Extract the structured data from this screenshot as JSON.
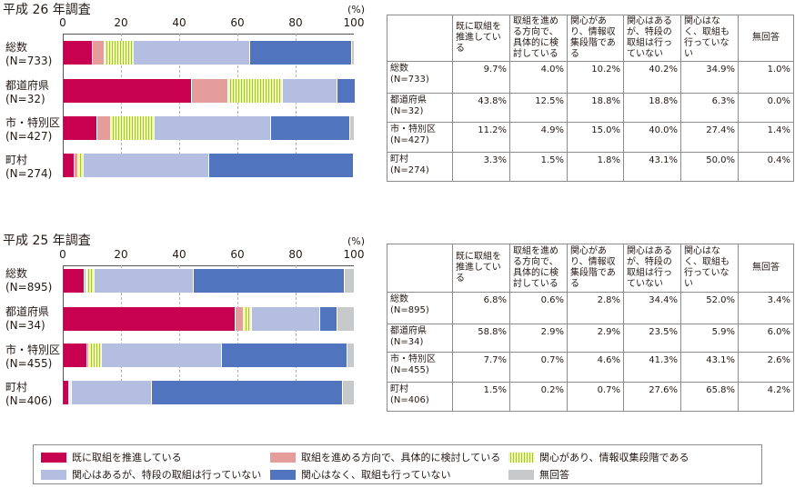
{
  "unit_label": "(%)",
  "ticks": [
    "0",
    "20",
    "40",
    "60",
    "80",
    "100"
  ],
  "table_headers": [
    "既に取組を推進している",
    "取組を進める方向で、具体的に検討している",
    "関心があり、情報収集段階である",
    "関心はあるが、特段の取組は行っていない",
    "関心はなく、取組も行っていない",
    "無回答"
  ],
  "series_colors": [
    "#c7004f",
    "#e59d9c",
    "#b5d45c",
    "#b3bee0",
    "#5074bd",
    "#c8c9ca"
  ],
  "legend": {
    "items": [
      {
        "label": "既に取組を推進している"
      },
      {
        "label": "取組を進める方向で、具体的に検討している"
      },
      {
        "label": "関心があり、情報収集段階である"
      },
      {
        "label": "関心はあるが、特段の取組は行っていない"
      },
      {
        "label": "関心はなく、取組も行っていない"
      },
      {
        "label": "無回答"
      }
    ]
  },
  "chart_data": [
    {
      "type": "bar",
      "stacked": true,
      "orientation": "horizontal",
      "title": "平成 26 年調査",
      "xlim": [
        0,
        100
      ],
      "categories": [
        {
          "name": "総数",
          "n": "(N=733)",
          "display": [
            "9.7%",
            "4.0%",
            "10.2%",
            "40.2%",
            "34.9%",
            "1.0%"
          ]
        },
        {
          "name": "都道府県",
          "n": "(N=32)",
          "display": [
            "43.8%",
            "12.5%",
            "18.8%",
            "18.8%",
            "6.3%",
            "0.0%"
          ]
        },
        {
          "name": "市・特別区",
          "n": "(N=427)",
          "display": [
            "11.2%",
            "4.9%",
            "15.0%",
            "40.0%",
            "27.4%",
            "1.4%"
          ]
        },
        {
          "name": "町村",
          "n": "(N=274)",
          "display": [
            "3.3%",
            "1.5%",
            "1.8%",
            "43.1%",
            "50.0%",
            "0.4%"
          ]
        }
      ],
      "series": [
        {
          "name": "既に取組を推進している",
          "values": [
            9.7,
            43.8,
            11.2,
            3.3
          ]
        },
        {
          "name": "取組を進める方向で、具体的に検討している",
          "values": [
            4.0,
            12.5,
            4.9,
            1.5
          ]
        },
        {
          "name": "関心があり、情報収集段階である",
          "values": [
            10.2,
            18.8,
            15.0,
            1.8
          ]
        },
        {
          "name": "関心はあるが、特段の取組は行っていない",
          "values": [
            40.2,
            18.8,
            40.0,
            43.1
          ]
        },
        {
          "name": "関心はなく、取組も行っていない",
          "values": [
            34.9,
            6.3,
            27.4,
            50.0
          ]
        },
        {
          "name": "無回答",
          "values": [
            1.0,
            0.0,
            1.4,
            0.4
          ]
        }
      ]
    },
    {
      "type": "bar",
      "stacked": true,
      "orientation": "horizontal",
      "title": "平成 25 年調査",
      "xlim": [
        0,
        100
      ],
      "categories": [
        {
          "name": "総数",
          "n": "(N=895)",
          "display": [
            "6.8%",
            "0.6%",
            "2.8%",
            "34.4%",
            "52.0%",
            "3.4%"
          ]
        },
        {
          "name": "都道府県",
          "n": "(N=34)",
          "display": [
            "58.8%",
            "2.9%",
            "2.9%",
            "23.5%",
            "5.9%",
            "6.0%"
          ]
        },
        {
          "name": "市・特別区",
          "n": "(N=455)",
          "display": [
            "7.7%",
            "0.7%",
            "4.6%",
            "41.3%",
            "43.1%",
            "2.6%"
          ]
        },
        {
          "name": "町村",
          "n": "(N=406)",
          "display": [
            "1.5%",
            "0.2%",
            "0.7%",
            "27.6%",
            "65.8%",
            "4.2%"
          ]
        }
      ],
      "series": [
        {
          "name": "既に取組を推進している",
          "values": [
            6.8,
            58.8,
            7.7,
            1.5
          ]
        },
        {
          "name": "取組を進める方向で、具体的に検討している",
          "values": [
            0.6,
            2.9,
            0.7,
            0.2
          ]
        },
        {
          "name": "関心があり、情報収集段階である",
          "values": [
            2.8,
            2.9,
            4.6,
            0.7
          ]
        },
        {
          "name": "関心はあるが、特段の取組は行っていない",
          "values": [
            34.4,
            23.5,
            41.3,
            27.6
          ]
        },
        {
          "name": "関心はなく、取組も行っていない",
          "values": [
            52.0,
            5.9,
            43.1,
            65.8
          ]
        },
        {
          "name": "無回答",
          "values": [
            3.4,
            6.0,
            2.6,
            4.2
          ]
        }
      ]
    }
  ]
}
